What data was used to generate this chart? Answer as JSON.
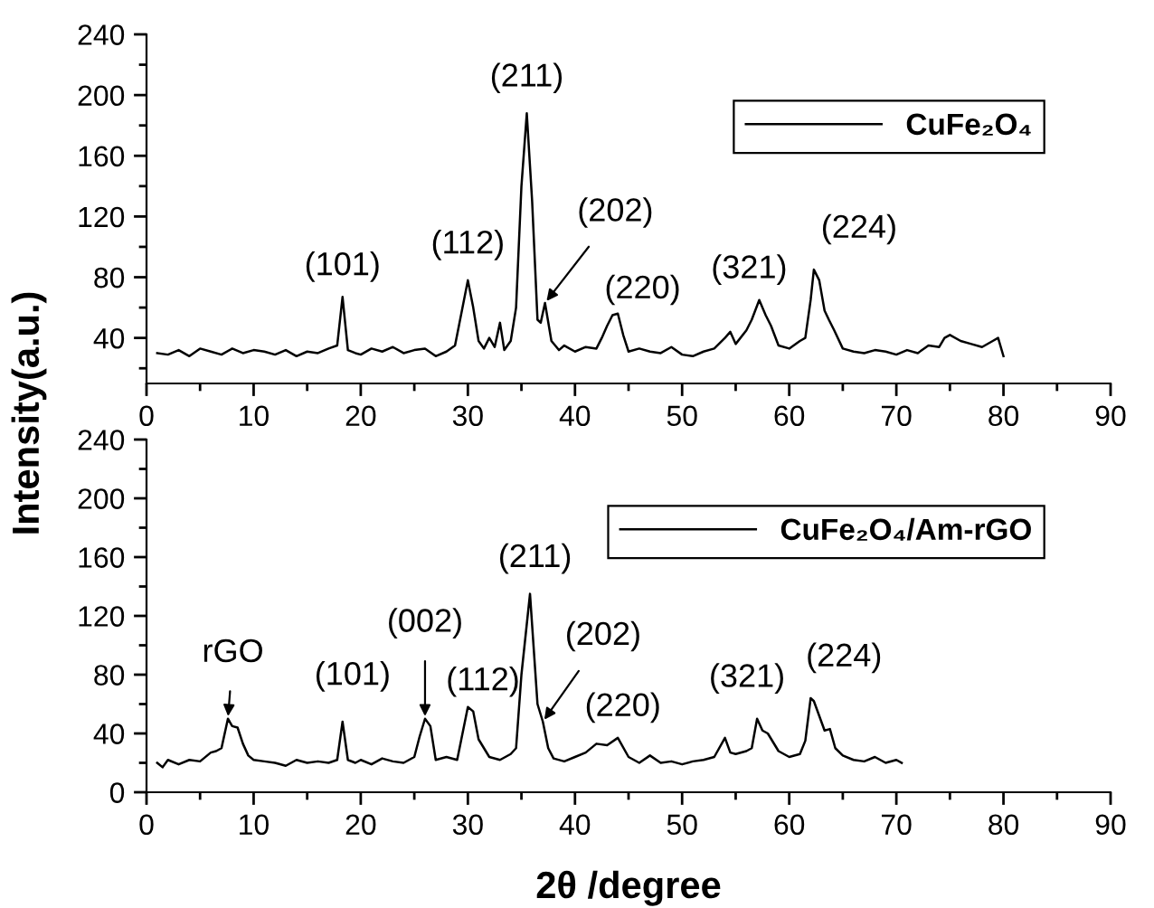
{
  "chart_data": [
    {
      "type": "line",
      "ylabel": "Intensity(a.u.)",
      "x": [
        1,
        2,
        3,
        4,
        5,
        6,
        7,
        8,
        9,
        10,
        11,
        12,
        13,
        14,
        15,
        16,
        17,
        17.8,
        18.3,
        18.8,
        19.5,
        20,
        21,
        22,
        23,
        24,
        25,
        26,
        27,
        28,
        28.8,
        29.5,
        30,
        30.5,
        31,
        31.5,
        32,
        32.5,
        33,
        33.4,
        34,
        34.5,
        35,
        35.5,
        36,
        36.5,
        36.8,
        37.2,
        37.8,
        38.5,
        39,
        40,
        41,
        42,
        42.5,
        43,
        43.5,
        44,
        44.5,
        45,
        46,
        47,
        48,
        49,
        50,
        51,
        52,
        53,
        54,
        54.5,
        55,
        56,
        56.5,
        57.2,
        57.8,
        58.3,
        59,
        60,
        61,
        61.5,
        62,
        62.3,
        62.8,
        63.3,
        63.7,
        64.2,
        65,
        66,
        67,
        68,
        69,
        70,
        71,
        72,
        73,
        74,
        74.5,
        75,
        76,
        77,
        78,
        79,
        79.5,
        80
      ],
      "series": [
        {
          "name": "CuFe₂O₄",
          "color": "#000000",
          "values": [
            30,
            29,
            32,
            28,
            33,
            31,
            29,
            33,
            30,
            32,
            31,
            29,
            32,
            28,
            31,
            30,
            33,
            35,
            67,
            32,
            30,
            29,
            33,
            31,
            34,
            30,
            32,
            33,
            28,
            31,
            35,
            60,
            78,
            60,
            38,
            33,
            40,
            34,
            50,
            32,
            38,
            60,
            140,
            188,
            130,
            52,
            50,
            63,
            38,
            32,
            35,
            31,
            34,
            33,
            40,
            48,
            55,
            56,
            42,
            31,
            33,
            31,
            30,
            34,
            29,
            28,
            31,
            33,
            40,
            44,
            36,
            45,
            52,
            65,
            55,
            48,
            35,
            33,
            38,
            40,
            65,
            85,
            78,
            58,
            52,
            45,
            33,
            31,
            30,
            32,
            31,
            29,
            32,
            30,
            35,
            34,
            40,
            42,
            38,
            36,
            34,
            38,
            40,
            28
          ]
        }
      ],
      "xlim": [
        0,
        90
      ],
      "xticks": [
        0,
        10,
        20,
        30,
        40,
        50,
        60,
        70,
        80,
        90
      ],
      "ylim": [
        10,
        240
      ],
      "yticks": [
        40,
        80,
        120,
        160,
        200,
        240
      ],
      "legend": "top right",
      "annotations": [
        {
          "text": "(101)",
          "x": 18.3,
          "y": 67
        },
        {
          "text": "(112)",
          "x": 30,
          "y": 78
        },
        {
          "text": "(211)",
          "x": 35.5,
          "y": 188
        },
        {
          "text": "(202)",
          "x": 37.2,
          "y": 63
        },
        {
          "text": "(220)",
          "x": 43.5,
          "y": 55
        },
        {
          "text": "(321)",
          "x": 57.2,
          "y": 65
        },
        {
          "text": "(224)",
          "x": 62.3,
          "y": 85
        }
      ]
    },
    {
      "type": "line",
      "xlabel": "2θ /degree",
      "x": [
        1,
        1.5,
        2,
        3,
        4,
        5,
        6,
        6.5,
        7,
        7.6,
        8,
        8.5,
        9,
        9.5,
        10,
        11,
        12,
        13,
        14,
        15,
        16,
        17,
        17.8,
        18.3,
        18.8,
        19.5,
        20,
        21,
        22,
        23,
        24,
        25,
        25.5,
        26,
        26.5,
        27,
        28,
        29,
        29.5,
        30,
        30.5,
        31,
        32,
        33,
        34,
        34.5,
        35,
        35.8,
        36.5,
        37,
        37.5,
        38,
        39,
        40,
        41,
        42,
        43,
        44,
        45,
        46,
        47,
        48,
        49,
        50,
        51,
        52,
        53,
        54,
        54.5,
        55,
        56,
        56.5,
        57,
        57.5,
        58,
        58.5,
        59,
        60,
        61,
        61.5,
        62,
        62.3,
        62.8,
        63.3,
        63.8,
        64.3,
        65,
        66,
        67,
        68,
        69,
        70,
        70.5
      ],
      "series": [
        {
          "name": "CuFe₂O₄/Am-rGO",
          "color": "#000000",
          "values": [
            20,
            17,
            22,
            19,
            22,
            21,
            27,
            28,
            30,
            50,
            45,
            44,
            33,
            25,
            22,
            21,
            20,
            18,
            22,
            20,
            21,
            20,
            22,
            48,
            22,
            20,
            22,
            19,
            23,
            21,
            20,
            24,
            38,
            50,
            45,
            22,
            24,
            22,
            40,
            58,
            55,
            36,
            24,
            22,
            26,
            30,
            80,
            135,
            60,
            48,
            30,
            23,
            21,
            24,
            27,
            33,
            32,
            37,
            24,
            20,
            25,
            20,
            21,
            19,
            21,
            22,
            24,
            37,
            27,
            26,
            28,
            30,
            50,
            42,
            40,
            34,
            28,
            24,
            26,
            35,
            64,
            62,
            52,
            42,
            43,
            30,
            25,
            22,
            21,
            24,
            20,
            22,
            20
          ]
        }
      ],
      "xlim": [
        0,
        90
      ],
      "xticks": [
        0,
        10,
        20,
        30,
        40,
        50,
        60,
        70,
        80,
        90
      ],
      "ylim": [
        0,
        240
      ],
      "yticks": [
        0,
        40,
        80,
        120,
        160,
        200,
        240
      ],
      "legend": "top right",
      "annotations": [
        {
          "text": "rGO",
          "x": 7.6,
          "y": 50
        },
        {
          "text": "(101)",
          "x": 18.3,
          "y": 48
        },
        {
          "text": "(002)",
          "x": 26,
          "y": 50
        },
        {
          "text": "(112)",
          "x": 30,
          "y": 58
        },
        {
          "text": "(211)",
          "x": 35.8,
          "y": 135
        },
        {
          "text": "(202)",
          "x": 37,
          "y": 48
        },
        {
          "text": "(220)",
          "x": 44,
          "y": 37
        },
        {
          "text": "(321)",
          "x": 57,
          "y": 50
        },
        {
          "text": "(224)",
          "x": 62.3,
          "y": 64
        }
      ]
    }
  ]
}
